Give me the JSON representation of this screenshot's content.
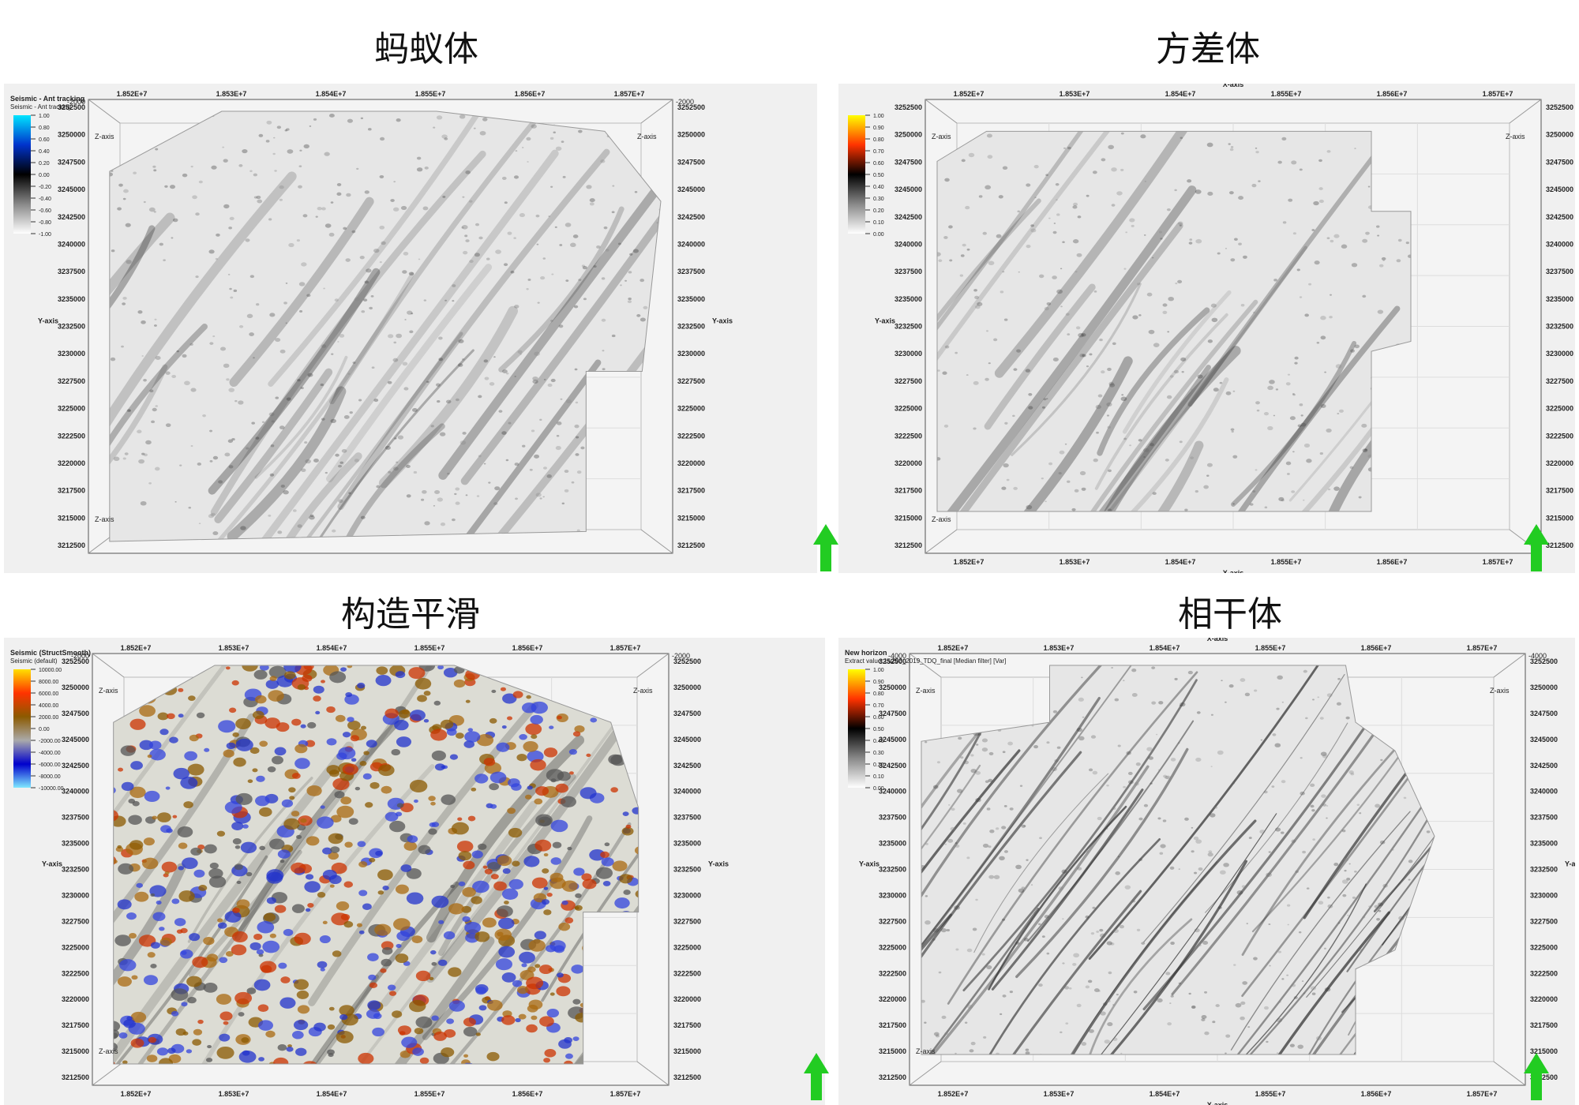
{
  "panels": [
    {
      "title": "蚂蚁体",
      "legend_title": "Seismic - Ant tracking",
      "legend_subtitle": "Seismic - Ant tracking",
      "legend_ticks": [
        "1.00",
        "0.80",
        "0.60",
        "0.40",
        "0.20",
        "0.00",
        "-0.20",
        "-0.40",
        "-0.60",
        "-0.80",
        "-1.00"
      ],
      "legend_colors": [
        "#00e5ff",
        "#0033cc",
        "#000000",
        "#888888",
        "#ffffff"
      ],
      "x_ticks": [
        "1.852E+7",
        "1.853E+7",
        "1.854E+7",
        "1.855E+7",
        "1.856E+7",
        "1.857E+7"
      ],
      "y_ticks": [
        "3252500",
        "3250000",
        "3247500",
        "3245000",
        "3242500",
        "3240000",
        "3237500",
        "3235000",
        "3232500",
        "3230000",
        "3227500",
        "3225000",
        "3222500",
        "3220000",
        "3217500",
        "3215000",
        "3212500"
      ],
      "y_axis_label": "Y-axis",
      "z_axis_label": "Z-axis",
      "corner_value": "-2000",
      "surface": "gray"
    },
    {
      "title": "方差体",
      "legend_title": "",
      "legend_subtitle": "",
      "legend_ticks": [
        "1.00",
        "0.90",
        "0.80",
        "0.70",
        "0.60",
        "0.50",
        "0.40",
        "0.30",
        "0.20",
        "0.10",
        "0.00"
      ],
      "legend_colors": [
        "#ffff00",
        "#ff3300",
        "#000000",
        "#888888",
        "#ffffff"
      ],
      "x_ticks": [
        "1.852E+7",
        "1.853E+7",
        "1.854E+7",
        "1.855E+7",
        "1.856E+7",
        "1.857E+7"
      ],
      "y_ticks": [
        "3252500",
        "3250000",
        "3247500",
        "3245000",
        "3242500",
        "3240000",
        "3237500",
        "3235000",
        "3232500",
        "3230000",
        "3227500",
        "3225000",
        "3222500",
        "3220000",
        "3217500",
        "3215000",
        "3212500"
      ],
      "x_axis_label": "X-axis",
      "y_axis_label": "Y-axis",
      "z_axis_label": "Z-axis",
      "surface": "gray2"
    },
    {
      "title": "构造平滑",
      "legend_title": "Seismic (StructSmooth)",
      "legend_subtitle": "Seismic (default)",
      "legend_ticks": [
        "10000.00",
        "8000.00",
        "6000.00",
        "4000.00",
        "2000.00",
        "0.00",
        "-2000.00",
        "-4000.00",
        "-6000.00",
        "-8000.00",
        "-10000.00"
      ],
      "legend_colors": [
        "#ffe000",
        "#ff3300",
        "#8b5a00",
        "#aaaaaa",
        "#0000cc",
        "#7fe8ff"
      ],
      "x_ticks": [
        "1.852E+7",
        "1.853E+7",
        "1.854E+7",
        "1.855E+7",
        "1.856E+7",
        "1.857E+7"
      ],
      "y_ticks": [
        "3252500",
        "3250000",
        "3247500",
        "3245000",
        "3242500",
        "3240000",
        "3237500",
        "3235000",
        "3232500",
        "3230000",
        "3227500",
        "3225000",
        "3222500",
        "3220000",
        "3217500",
        "3215000",
        "3212500"
      ],
      "y_axis_label": "Y-axis",
      "z_axis_label": "Z-axis",
      "corner_value": "-2000",
      "surface": "color"
    },
    {
      "title": "相干体",
      "legend_title": "New horizon",
      "legend_subtitle": "Extract value: Lu203_2019_TDQ_final [Median filter] [Var]",
      "legend_ticks": [
        "1.00",
        "0.90",
        "0.80",
        "0.70",
        "0.60",
        "0.50",
        "0.40",
        "0.30",
        "0.20",
        "0.10",
        "0.00"
      ],
      "legend_colors": [
        "#ffff00",
        "#ff3300",
        "#000000",
        "#888888",
        "#ffffff"
      ],
      "x_ticks": [
        "1.852E+7",
        "1.853E+7",
        "1.854E+7",
        "1.855E+7",
        "1.856E+7",
        "1.857E+7"
      ],
      "y_ticks": [
        "3252500",
        "3250000",
        "3247500",
        "3245000",
        "3242500",
        "3240000",
        "3237500",
        "3235000",
        "3232500",
        "3230000",
        "3227500",
        "3225000",
        "3222500",
        "3220000",
        "3217500",
        "3215000",
        "3212500"
      ],
      "x_axis_label": "X-axis",
      "y_axis_label": "Y-axis",
      "z_axis_label": "Z-axis",
      "corner_value": "-4000",
      "surface": "gray3"
    }
  ],
  "north_arrow_color": "#22cc22"
}
